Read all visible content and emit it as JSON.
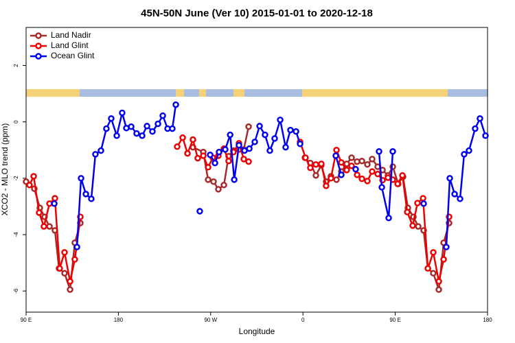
{
  "chart_data": {
    "type": "line",
    "title": "45N-50N June (Ver 10)   2015-01-01 to 2020-12-18",
    "xlabel": "Longitude",
    "ylabel": "XCO2 - MLO trend (ppm)",
    "xlim": [
      90,
      540
    ],
    "ylim": [
      -6.75,
      3.35
    ],
    "xticks": [
      {
        "value": 90,
        "label": "90 E"
      },
      180,
      {
        "value": 270,
        "label": "90 W"
      },
      {
        "value": 360,
        "label": "0"
      },
      {
        "value": 450,
        "label": "90 E"
      },
      {
        "value": 540,
        "label": "180"
      }
    ],
    "yticks": [
      -6,
      -4,
      -2,
      0,
      2
    ],
    "legend": "topleft",
    "series": [
      {
        "name": "Land Nadir",
        "color": "#a52a2a",
        "x": [
          90,
          98,
          103.4,
          108,
          112.8,
          118.1,
          122.1,
          127.5,
          132.9,
          137.5,
          142.9,
          null,
          252.7,
          262.8,
          267.5,
          272.8,
          277.5,
          282.9,
          287.5,
          292.2,
          297.6,
          302.3,
          307,
          null,
          361.9,
          367.2,
          372.6,
          377.9,
          382.6,
          387.3,
          392.7,
          397.4,
          402.7,
          407.4,
          412.8,
          417.5,
          422.8,
          427.5,
          432.9,
          437.6,
          442.9,
          447.6,
          452.9,
          457.6,
          462.3,
          467.7,
          472.4,
          477.7,
          481.8,
          487.1,
          492.5,
          497.2,
          502.5
        ],
        "values": [
          -2.12,
          -2.37,
          -3.05,
          -3.37,
          -3.71,
          -3.85,
          -5.2,
          -5.37,
          -5.95,
          -4.29,
          -3.59,
          null,
          -0.9,
          -1.07,
          -2.05,
          -2.12,
          -2.39,
          -2.24,
          -1.22,
          -1.02,
          -0.98,
          -0.98,
          -0.17,
          null,
          -1.27,
          -1.46,
          -1.9,
          -1.54,
          -2.12,
          -1.93,
          -2.05,
          -1.76,
          -1.49,
          -1.27,
          -1.41,
          -1.39,
          -1.51,
          -1.32,
          -1.59,
          -1.71,
          -1.9,
          -1.59,
          -2.2,
          -1.95,
          -3.05,
          -3.37,
          -3.71,
          -3.85,
          -5.2,
          -5.37,
          -5.95,
          -4.29,
          -3.59
        ]
      },
      {
        "name": "Land Glint",
        "color": "#ee0000",
        "x": [
          93.3,
          97.4,
          102.7,
          107.4,
          112.8,
          118.1,
          122.8,
          127.5,
          132.9,
          137.5,
          142.9,
          null,
          237.3,
          242.7,
          247.4,
          252.7,
          257.4,
          262.8,
          267.5,
          272.1,
          277.5,
          282.9,
          287.5,
          292.2,
          297.6,
          302.3,
          307,
          null,
          357.2,
          362.5,
          367.2,
          372.6,
          377.9,
          382.6,
          387.3,
          392.7,
          397.4,
          402.7,
          407.4,
          412.8,
          417.5,
          422.8,
          427.5,
          432.9,
          437.6,
          442.9,
          447.6,
          452.3,
          457,
          461.7,
          467,
          471.7,
          477.1,
          481.8,
          487.1,
          492.5,
          497.2,
          502.5
        ],
        "values": [
          -2.24,
          -1.93,
          -3.22,
          -3.71,
          -2.9,
          -2.71,
          -5.2,
          -4.63,
          -5.66,
          -4.88,
          -3.37,
          null,
          -0.88,
          -0.56,
          -1.12,
          -0.63,
          -1.29,
          -1.2,
          -1.61,
          -1.27,
          -1.2,
          -0.95,
          -1.39,
          -1.07,
          -0.76,
          -1.32,
          -1.41,
          null,
          -0.71,
          -1.27,
          -1.63,
          -1.51,
          -1.49,
          -2.27,
          -2.0,
          -1.0,
          -1.44,
          -1.71,
          -1.56,
          -1.88,
          -2.02,
          -2.1,
          -1.76,
          -1.85,
          -2.07,
          -1.98,
          -2.05,
          -2.2,
          -1.9,
          -3.2,
          -3.68,
          -2.88,
          -2.71,
          -5.2,
          -4.63,
          -5.66,
          -4.88,
          -3.37
        ]
      },
      {
        "name": "Ocean Glint",
        "color": "#0000ee",
        "x": [
          117.5,
          null,
          139.6,
          143.6,
          148.3,
          153.6,
          157.6,
          163,
          168.3,
          173,
          178.4,
          183.7,
          187.8,
          192.5,
          197.8,
          203.2,
          207.9,
          213.2,
          218.6,
          223.3,
          228,
          232.6,
          236,
          null,
          259.4,
          null,
          269.5,
          274.2,
          278.2,
          284.2,
          289,
          293,
          297.6,
          303,
          307.7,
          313,
          317.7,
          323,
          327.7,
          332.4,
          337.8,
          343.1,
          347.8,
          353.2,
          357.2,
          null,
          392,
          397.4,
          null,
          411.4,
          null,
          434.2,
          436.9,
          443.6,
          447.6,
          null,
          477.7,
          null,
          499.8,
          503.2,
          507.9,
          513.2,
          517.2,
          521.9,
          527.9,
          532.6,
          538
        ],
        "values": [
          -2.9,
          null,
          -4.44,
          -2.0,
          -2.56,
          -2.73,
          -1.15,
          -1.02,
          -0.24,
          0.12,
          -0.49,
          0.32,
          -0.22,
          -0.17,
          -0.41,
          -0.49,
          -0.15,
          -0.34,
          -0.07,
          0.22,
          -0.24,
          -0.24,
          0.61,
          null,
          -3.17,
          null,
          -1.17,
          -1.46,
          -1.07,
          -0.98,
          -0.46,
          -2.05,
          -0.83,
          -1.02,
          -0.95,
          -0.71,
          -0.15,
          -0.46,
          -1.02,
          -0.59,
          0.07,
          -0.9,
          -0.29,
          -0.34,
          -0.78,
          null,
          -1.2,
          -1.88,
          null,
          -1.68,
          null,
          -1.05,
          -2.32,
          -3.41,
          -1.05,
          null,
          -2.9,
          null,
          -4.44,
          -2.0,
          -2.56,
          -2.73,
          -1.15,
          -1.02,
          -0.24,
          0.12,
          -0.49
        ]
      }
    ]
  }
}
